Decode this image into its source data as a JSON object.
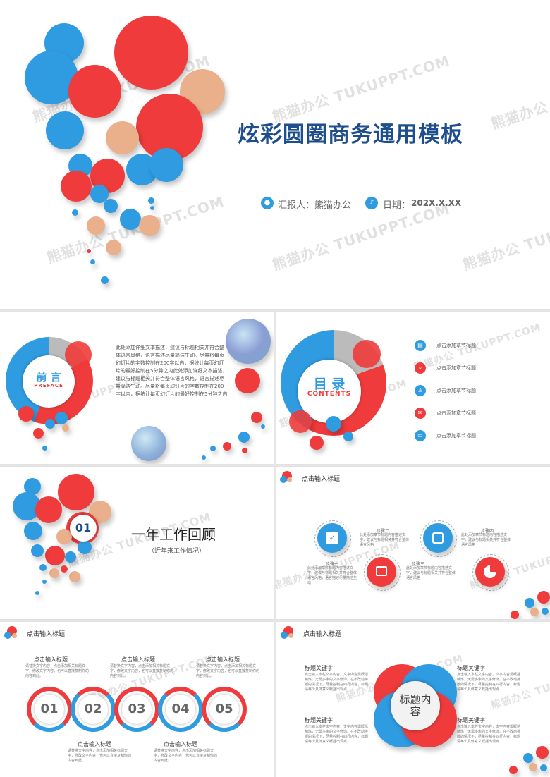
{
  "cover": {
    "title": "炫彩圆圈商务通用模板",
    "reporter_label": "汇报人：熊猫办公",
    "date_label": "日期：",
    "date_value": "202X.X.XX",
    "icons": [
      "person-icon",
      "mic-icon"
    ]
  },
  "watermark": "熊猫办公 TUKUPPT.COM",
  "preface": {
    "title": "前 言",
    "subtitle": "PREFACE",
    "body": "此处添加详细文本描述，建议与标题相关并符合整体语言风格，语言描述尽量简洁生动。尽量将每页幻灯片的字数控制在200字以内，据统计每页幻灯片的最好控制在5分钟之内此处添加详细文本描述，建议与标题相关并符合整体语言风格，语言描述尽量简洁生动。尽量将每页幻灯片的字数控制在200字以内，据统计每页幻灯片的最好控制在5分钟之内"
  },
  "contents": {
    "title": "目 录",
    "subtitle": "CONTENTS",
    "items": [
      {
        "label": "点击添加章节标题",
        "icon": "document-icon"
      },
      {
        "label": "点击添加章节标题",
        "icon": "search-icon"
      },
      {
        "label": "点击添加章节标题",
        "icon": "person-icon"
      },
      {
        "label": "点击添加章节标题",
        "icon": "chat-icon"
      },
      {
        "label": "点击添加章节标题",
        "icon": "monitor-icon"
      }
    ]
  },
  "section": {
    "number": "01",
    "title": "一年工作回顾",
    "subtitle": "（近年来工作情况）"
  },
  "steps_slide": {
    "header": "点击输入标题",
    "steps": [
      {
        "label": "步骤一",
        "desc": "此处添加章节标题内容描述文字，建议与标题相关并符合整体语言风格，语言描述尽量简洁生动"
      },
      {
        "label": "步骤二",
        "desc": "此处添加章节标题内容描述文字，建议与标题相关并符合整体语言风格"
      },
      {
        "label": "步骤三",
        "desc": "此处添加章节标题内容描述文字，建议与标题相关并符合整体语言风格"
      },
      {
        "label": "步骤四",
        "desc": "此处添加章节标题内容描述文字，建议与标题相关并符合整体语言风格"
      }
    ]
  },
  "numbers_slide": {
    "header": "点击输入标题",
    "numbers": [
      "01",
      "02",
      "03",
      "04",
      "05"
    ],
    "top_items": [
      {
        "title": "点击输入标题",
        "desc": "请替换文字内容，点击添加相关标题文字，修改文字内容，也可以直接复制你的内容到此。"
      },
      {
        "title": "点击输入标题",
        "desc": "请替换文字内容，点击添加相关标题文字，修改文字内容，也可以直接复制你的内容到此。"
      },
      {
        "title": "点击输入标题",
        "desc": "请替换文字内容，点击添加相关标题文字，修改文字内容，也可以直接复制你的内容到此。"
      }
    ],
    "bottom_items": [
      {
        "title": "点击输入标题",
        "desc": "请替换文字内容，点击添加相关标题文字，修改文字内容，也可以直接复制你的内容到此。"
      },
      {
        "title": "点击输入标题",
        "desc": "请替换文字内容，点击添加相关标题文字，修改文字内容，也可以直接复制你的内容到此。"
      }
    ]
  },
  "keywords_slide": {
    "header": "点击输入标题",
    "center": "标题内容",
    "blocks": [
      {
        "title": "标题关键字",
        "desc": "点击输入本栏文字内容，文字内容需概括精炼，无需多余的文字修饰。在不改动排版的情况下，尽量控制在四行内容，标题请每个具体意义概括出现点"
      },
      {
        "title": "标题关键字",
        "desc": "点击输入本栏文字内容，文字内容需概括精炼，无需多余的文字修饰。在不改动排版的情况下，尽量控制在四行内容，标题请每个具体意义概括出现点"
      },
      {
        "title": "标题关键字",
        "desc": "点击输入本栏文字内容，文字内容需概括精炼，无需多余的文字修饰。在不改动排版的情况下，尽量控制在四行内容，标题请每个具体意义概括出现点"
      },
      {
        "title": "标题关键字",
        "desc": "点击输入本栏文字内容，文字内容需概括精炼，无需多余的文字修饰。在不改动排版的情况下，尽量控制在四行内容，标题请每个具体意义概括出现点"
      }
    ]
  },
  "colors": {
    "red": "#ef3b3b",
    "blue": "#2f9be0",
    "tan": "#eab08c",
    "navy": "#1e4e8c"
  }
}
